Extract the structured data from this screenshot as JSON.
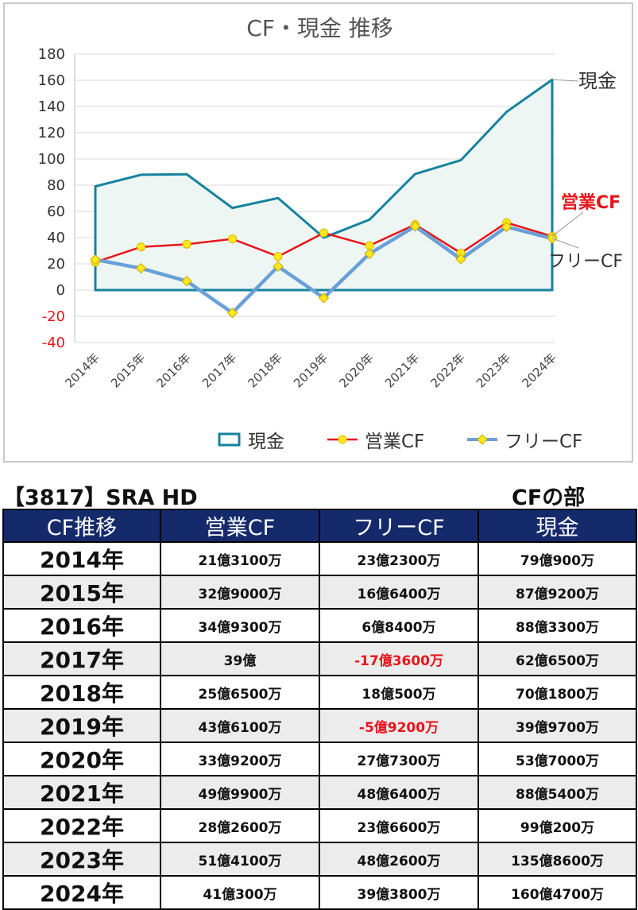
{
  "chart_data": {
    "type": "line",
    "title": "CF・現金 推移",
    "categories": [
      "2014年",
      "2015年",
      "2016年",
      "2017年",
      "2018年",
      "2019年",
      "2020年",
      "2021年",
      "2022年",
      "2023年",
      "2024年"
    ],
    "ylim": [
      -40,
      180
    ],
    "yticks": [
      180,
      160,
      140,
      120,
      100,
      80,
      60,
      40,
      20,
      0,
      -20,
      -40
    ],
    "negative_tick_color": "#e8141b",
    "grid": true,
    "legend_position": "bottom",
    "series": [
      {
        "name": "現金",
        "label": "現金",
        "color": "#16829e",
        "fill": "#eef6f3",
        "style": "area",
        "values": [
          79.09,
          87.92,
          88.33,
          62.65,
          70.18,
          39.97,
          53.7,
          88.54,
          99.02,
          135.86,
          160.47
        ]
      },
      {
        "name": "営業CF",
        "label": "営業CF",
        "color": "#e8141b",
        "label_color": "#e8141b",
        "style": "line",
        "values": [
          21.31,
          32.9,
          34.93,
          39,
          25.65,
          43.61,
          33.92,
          49.99,
          28.26,
          51.41,
          41.03
        ]
      },
      {
        "name": "フリーCF",
        "label": "フリーCF",
        "color": "#6aa0d8",
        "style": "line",
        "values": [
          23.23,
          16.64,
          6.84,
          -17.36,
          18.05,
          -5.92,
          27.73,
          48.64,
          23.66,
          48.26,
          39.38
        ]
      }
    ]
  },
  "company_title": "【3817】SRA HD",
  "section_title": "CFの部",
  "table": {
    "headers": [
      "CF推移",
      "営業CF",
      "フリーCF",
      "現金"
    ],
    "rows": [
      {
        "year": "2014年",
        "op": "21億3100万",
        "free": "23億2300万",
        "cash": "79億900万",
        "free_neg": false
      },
      {
        "year": "2015年",
        "op": "32億9000万",
        "free": "16億6400万",
        "cash": "87億9200万",
        "free_neg": false
      },
      {
        "year": "2016年",
        "op": "34億9300万",
        "free": "6億8400万",
        "cash": "88億3300万",
        "free_neg": false
      },
      {
        "year": "2017年",
        "op": "39億",
        "free": "-17億3600万",
        "cash": "62億6500万",
        "free_neg": true
      },
      {
        "year": "2018年",
        "op": "25億6500万",
        "free": "18億500万",
        "cash": "70億1800万",
        "free_neg": false
      },
      {
        "year": "2019年",
        "op": "43億6100万",
        "free": "-5億9200万",
        "cash": "39億9700万",
        "free_neg": true
      },
      {
        "year": "2020年",
        "op": "33億9200万",
        "free": "27億7300万",
        "cash": "53億7000万",
        "free_neg": false
      },
      {
        "year": "2021年",
        "op": "49億9900万",
        "free": "48億6400万",
        "cash": "88億5400万",
        "free_neg": false
      },
      {
        "year": "2022年",
        "op": "28億2600万",
        "free": "23億6600万",
        "cash": "99億200万",
        "free_neg": false
      },
      {
        "year": "2023年",
        "op": "51億4100万",
        "free": "48億2600万",
        "cash": "135億8600万",
        "free_neg": false
      },
      {
        "year": "2024年",
        "op": "41億300万",
        "free": "39億3800万",
        "cash": "160億4700万",
        "free_neg": false
      }
    ]
  }
}
